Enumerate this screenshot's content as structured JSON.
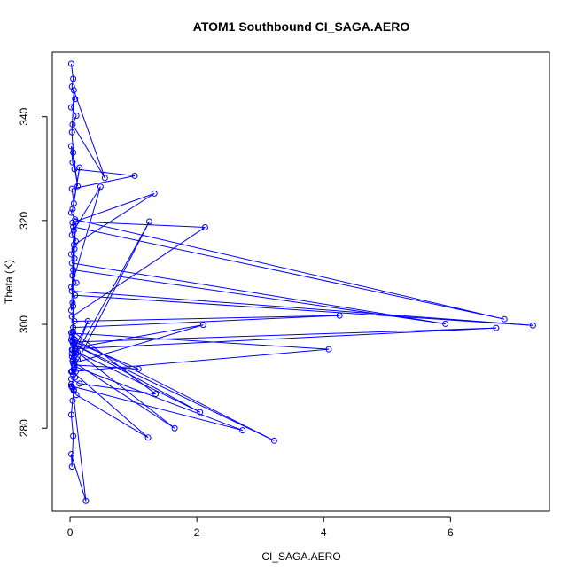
{
  "chart_data": {
    "type": "line",
    "title": "ATOM1 Southbound CI_SAGA.AERO",
    "xlabel": "CI_SAGA.AERO",
    "ylabel": "Theta (K)",
    "xlim": [
      -0.28,
      7.56
    ],
    "ylim": [
      264.0,
      352.4
    ],
    "x_ticks": [
      0,
      2,
      4,
      6
    ],
    "y_ticks": [
      280,
      300,
      320,
      340
    ],
    "grid": false,
    "legend": "none",
    "colors": {
      "series": "#0000ff",
      "axes": "#000000"
    },
    "series": [
      {
        "x": [
          0.02,
          0.05,
          0.03,
          0.08,
          0.02,
          0.1,
          0.04,
          0.55,
          0.06,
          0.03,
          0.05,
          0.12,
          0.02,
          0.04,
          0.07,
          1.02,
          0.03,
          0.06,
          0.15,
          0.04,
          0.02,
          0.08,
          6.85,
          0.05,
          0.03,
          0.09,
          0.04,
          1.33,
          0.06,
          0.02,
          0.07,
          0.03,
          5.92,
          0.05,
          0.04,
          0.1,
          0.02,
          0.48,
          0.06,
          0.03,
          7.3,
          0.08,
          0.04,
          0.05,
          0.02,
          0.09,
          2.13,
          0.03,
          0.07,
          4.25,
          0.05,
          0.02,
          0.06,
          0.04,
          6.72,
          0.08,
          0.03,
          0.28,
          0.05,
          1.25,
          0.06,
          0.03,
          4.08,
          0.04,
          0.02,
          0.08,
          2.1,
          0.05,
          0.07,
          0.03,
          0.12,
          0.06,
          1.08,
          0.04,
          0.09,
          0.02,
          0.15,
          1.35,
          0.05,
          0.03,
          0.07,
          2.05,
          0.04,
          0.1,
          0.06,
          0.02,
          0.08,
          3.22,
          0.05,
          0.03,
          0.12,
          1.65,
          0.04,
          0.07,
          2.72,
          0.02,
          0.06,
          0.1,
          1.23,
          0.03,
          0.05,
          0.08,
          0.02,
          0.04,
          0.25,
          0.02,
          0.03,
          0.05,
          0.02,
          0.04,
          0.06,
          0.03
        ],
        "y": [
          350.2,
          347.3,
          345.8,
          343.4,
          341.8,
          340.2,
          338.5,
          328.2,
          345.1,
          337.0,
          333.1,
          326.6,
          334.3,
          331.2,
          329.9,
          328.6,
          326.1,
          323.3,
          330.2,
          322.2,
          321.5,
          320.2,
          301.0,
          318.8,
          317.2,
          316.0,
          319.6,
          325.2,
          315.3,
          313.5,
          312.7,
          311.8,
          300.1,
          310.5,
          309.4,
          308.0,
          307.2,
          326.5,
          318.1,
          306.4,
          299.8,
          305.6,
          304.2,
          303.5,
          302.7,
          319.8,
          318.7,
          301.5,
          300.6,
          301.7,
          299.4,
          298.4,
          297.2,
          296.6,
          299.3,
          295.3,
          294.4,
          300.6,
          293.2,
          319.8,
          291.5,
          290.9,
          295.2,
          298.3,
          297.0,
          295.5,
          299.9,
          292.5,
          314.5,
          293.8,
          293.2,
          292.2,
          291.4,
          296.8,
          290.9,
          289.5,
          288.6,
          286.6,
          298.6,
          297.6,
          296.1,
          283.1,
          295.1,
          294.4,
          293.7,
          290.9,
          297.0,
          277.6,
          296.2,
          295.1,
          294.6,
          280.0,
          292.9,
          291.9,
          279.6,
          288.1,
          287.4,
          286.4,
          278.2,
          291.0,
          290.3,
          289.8,
          288.5,
          287.7,
          266.0,
          275.0,
          272.6,
          278.5,
          282.6,
          285.3,
          287.2,
          288.0
        ]
      }
    ]
  }
}
